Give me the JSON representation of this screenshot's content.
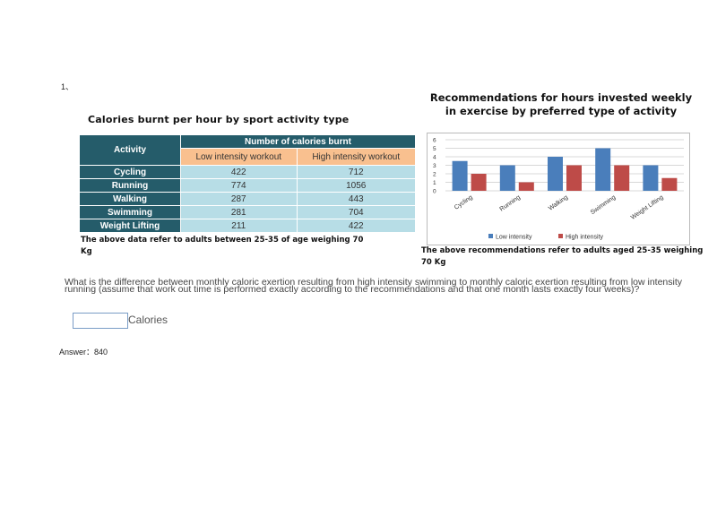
{
  "question_number": "1、",
  "table": {
    "title": "Calories burnt per hour by sport activity type",
    "header_activity": "Activity",
    "header_group": "Number of calories burnt",
    "col_low": "Low intensity workout",
    "col_high": "High intensity workout",
    "rows": [
      {
        "activity": "Cycling",
        "low": "422",
        "high": "712"
      },
      {
        "activity": "Running",
        "low": "774",
        "high": "1056"
      },
      {
        "activity": "Walking",
        "low": "287",
        "high": "443"
      },
      {
        "activity": "Swimming",
        "low": "281",
        "high": "704"
      },
      {
        "activity": "Weight Lifting",
        "low": "211",
        "high": "422"
      }
    ],
    "caption": "The above data refer to adults between 25-35 of age weighing 70 Kg"
  },
  "chart_data": {
    "type": "bar",
    "title": "Recommendations for hours invested weekly in exercise by preferred type of activity",
    "categories": [
      "Cycling",
      "Running",
      "Walking",
      "Swimming",
      "Weight Lifting"
    ],
    "series": [
      {
        "name": "Low intensity",
        "values": [
          3.5,
          3,
          4,
          5,
          3
        ],
        "color": "#4a7ebb"
      },
      {
        "name": "High intensity",
        "values": [
          2,
          1,
          3,
          3,
          1.5
        ],
        "color": "#be4b48"
      }
    ],
    "ylim": [
      0,
      6
    ],
    "yticks": [
      "0",
      "1",
      "2",
      "3",
      "4",
      "5",
      "6"
    ],
    "grid": true,
    "legend": "bottom",
    "caption": "The above recommendations refer to adults aged 25-35 weighing 70 Kg"
  },
  "question": {
    "text": "What is the difference between monthly caloric exertion resulting from high intensity swimming to monthly caloric exertion resulting from low intensity running (assume that work out time is performed exactly according to the recommendations and that one month lasts exactly four weeks)?",
    "input_value": "",
    "unit": "Calories"
  },
  "answer": "Answer：840"
}
